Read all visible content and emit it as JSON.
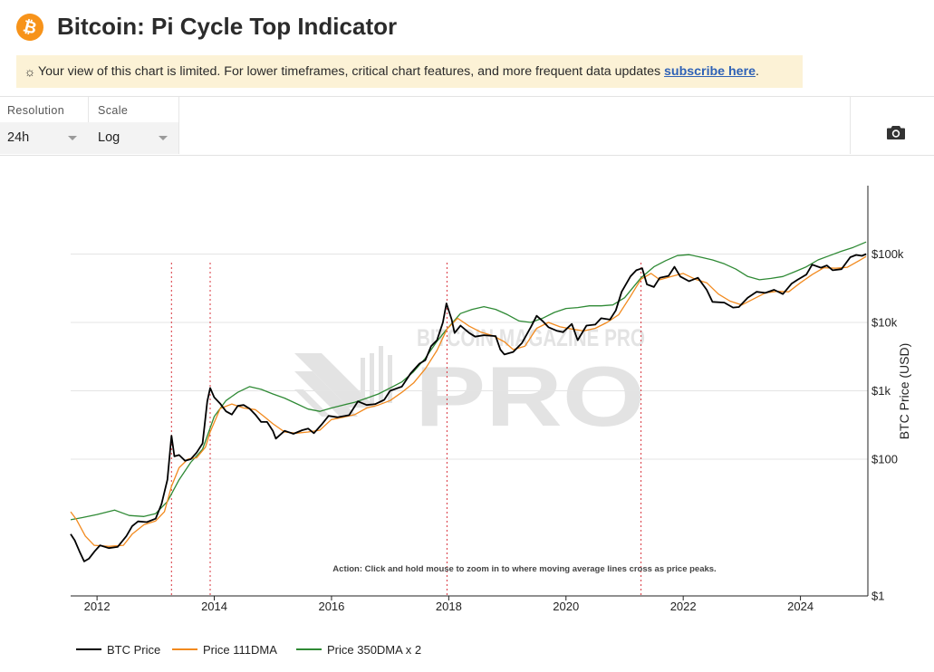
{
  "header": {
    "logo_glyph": "₿",
    "title": "Bitcoin: Pi Cycle Top Indicator"
  },
  "notice": {
    "icon": "sun-icon",
    "text": "Your view of this chart is limited. For lower timeframes, critical chart features, and more frequent data updates ",
    "link": "subscribe here",
    "suffix": "."
  },
  "controls": {
    "resolution": {
      "label": "Resolution",
      "value": "24h"
    },
    "scale": {
      "label": "Scale",
      "value": "Log"
    },
    "screenshot_icon": "camera-icon"
  },
  "chart_data": {
    "type": "line",
    "yscale": "log",
    "ylabel": "BTC Price (USD)",
    "xlim": [
      2011.55,
      2025.15
    ],
    "ylim": [
      1,
      1000000
    ],
    "y_ticks": [
      {
        "value": 100000,
        "label": "$100k"
      },
      {
        "value": 10000,
        "label": "$10k"
      },
      {
        "value": 1000,
        "label": "$1k"
      },
      {
        "value": 100,
        "label": "$100"
      },
      {
        "value": 1,
        "label": "$1"
      }
    ],
    "x_ticks": [
      {
        "value": 2012,
        "label": "2012"
      },
      {
        "value": 2014,
        "label": "2014"
      },
      {
        "value": 2016,
        "label": "2016"
      },
      {
        "value": 2018,
        "label": "2018"
      },
      {
        "value": 2020,
        "label": "2020"
      },
      {
        "value": 2022,
        "label": "2022"
      },
      {
        "value": 2024,
        "label": "2024"
      }
    ],
    "grid": true,
    "legend_position": "bottom-left",
    "watermark": "BITCOIN MAGAZINE PRO",
    "annotation": "Action: Click and hold mouse to zoom in to where moving average lines cross as price peaks.",
    "cross_events": [
      2013.27,
      2013.93,
      2017.97,
      2021.28
    ],
    "series": [
      {
        "name": "BTC Price",
        "color": "#000000",
        "points": [
          [
            2011.55,
            8
          ],
          [
            2011.62,
            6.5
          ],
          [
            2011.7,
            4.5
          ],
          [
            2011.78,
            3.2
          ],
          [
            2011.86,
            3.5
          ],
          [
            2011.96,
            4.5
          ],
          [
            2012.05,
            5.5
          ],
          [
            2012.2,
            5
          ],
          [
            2012.35,
            5.2
          ],
          [
            2012.5,
            7.5
          ],
          [
            2012.6,
            10.5
          ],
          [
            2012.7,
            12.3
          ],
          [
            2012.85,
            12
          ],
          [
            2013.0,
            13.5
          ],
          [
            2013.1,
            22
          ],
          [
            2013.2,
            50
          ],
          [
            2013.27,
            220
          ],
          [
            2013.32,
            110
          ],
          [
            2013.4,
            115
          ],
          [
            2013.5,
            95
          ],
          [
            2013.6,
            100
          ],
          [
            2013.7,
            125
          ],
          [
            2013.8,
            170
          ],
          [
            2013.88,
            700
          ],
          [
            2013.93,
            1100
          ],
          [
            2014.0,
            800
          ],
          [
            2014.1,
            650
          ],
          [
            2014.2,
            500
          ],
          [
            2014.3,
            450
          ],
          [
            2014.4,
            600
          ],
          [
            2014.5,
            620
          ],
          [
            2014.6,
            550
          ],
          [
            2014.7,
            450
          ],
          [
            2014.8,
            350
          ],
          [
            2014.9,
            350
          ],
          [
            2015.0,
            260
          ],
          [
            2015.05,
            200
          ],
          [
            2015.2,
            260
          ],
          [
            2015.35,
            235
          ],
          [
            2015.5,
            265
          ],
          [
            2015.6,
            280
          ],
          [
            2015.7,
            240
          ],
          [
            2015.83,
            320
          ],
          [
            2015.95,
            430
          ],
          [
            2016.1,
            410
          ],
          [
            2016.3,
            440
          ],
          [
            2016.45,
            700
          ],
          [
            2016.6,
            620
          ],
          [
            2016.75,
            640
          ],
          [
            2016.9,
            740
          ],
          [
            2017.0,
            1000
          ],
          [
            2017.2,
            1150
          ],
          [
            2017.35,
            1800
          ],
          [
            2017.5,
            2500
          ],
          [
            2017.6,
            2800
          ],
          [
            2017.7,
            4500
          ],
          [
            2017.8,
            5500
          ],
          [
            2017.9,
            10000
          ],
          [
            2017.96,
            19000
          ],
          [
            2018.05,
            11000
          ],
          [
            2018.1,
            7000
          ],
          [
            2018.2,
            9000
          ],
          [
            2018.35,
            7000
          ],
          [
            2018.45,
            6200
          ],
          [
            2018.6,
            6500
          ],
          [
            2018.8,
            6300
          ],
          [
            2018.88,
            4000
          ],
          [
            2018.95,
            3400
          ],
          [
            2019.1,
            3700
          ],
          [
            2019.25,
            5000
          ],
          [
            2019.4,
            8500
          ],
          [
            2019.5,
            12500
          ],
          [
            2019.6,
            10500
          ],
          [
            2019.7,
            8500
          ],
          [
            2019.85,
            7500
          ],
          [
            2019.95,
            7200
          ],
          [
            2020.1,
            9500
          ],
          [
            2020.2,
            5500
          ],
          [
            2020.35,
            9000
          ],
          [
            2020.5,
            9300
          ],
          [
            2020.6,
            11500
          ],
          [
            2020.75,
            11000
          ],
          [
            2020.85,
            15000
          ],
          [
            2020.95,
            28000
          ],
          [
            2021.1,
            47000
          ],
          [
            2021.2,
            58000
          ],
          [
            2021.3,
            62000
          ],
          [
            2021.38,
            36000
          ],
          [
            2021.5,
            33000
          ],
          [
            2021.6,
            45000
          ],
          [
            2021.75,
            48000
          ],
          [
            2021.85,
            65000
          ],
          [
            2021.95,
            47000
          ],
          [
            2022.1,
            40000
          ],
          [
            2022.25,
            45000
          ],
          [
            2022.4,
            30000
          ],
          [
            2022.5,
            20000
          ],
          [
            2022.7,
            19500
          ],
          [
            2022.85,
            16500
          ],
          [
            2022.95,
            16800
          ],
          [
            2023.1,
            23000
          ],
          [
            2023.25,
            28000
          ],
          [
            2023.4,
            27000
          ],
          [
            2023.55,
            30000
          ],
          [
            2023.7,
            26000
          ],
          [
            2023.85,
            37000
          ],
          [
            2023.95,
            42000
          ],
          [
            2024.1,
            50000
          ],
          [
            2024.2,
            70000
          ],
          [
            2024.35,
            63000
          ],
          [
            2024.45,
            68000
          ],
          [
            2024.55,
            58000
          ],
          [
            2024.7,
            60000
          ],
          [
            2024.85,
            90000
          ],
          [
            2024.95,
            97000
          ],
          [
            2025.05,
            94000
          ],
          [
            2025.12,
            100000
          ]
        ]
      },
      {
        "name": "Price 111DMA",
        "color": "#f28a1e",
        "points": [
          [
            2011.55,
            17
          ],
          [
            2011.65,
            13
          ],
          [
            2011.8,
            7.5
          ],
          [
            2011.95,
            5.5
          ],
          [
            2012.2,
            5.3
          ],
          [
            2012.45,
            5.5
          ],
          [
            2012.6,
            8
          ],
          [
            2012.8,
            11
          ],
          [
            2013.0,
            12.5
          ],
          [
            2013.15,
            17
          ],
          [
            2013.27,
            40
          ],
          [
            2013.4,
            75
          ],
          [
            2013.55,
            100
          ],
          [
            2013.7,
            105
          ],
          [
            2013.85,
            150
          ],
          [
            2013.93,
            250
          ],
          [
            2014.1,
            550
          ],
          [
            2014.3,
            640
          ],
          [
            2014.5,
            560
          ],
          [
            2014.7,
            530
          ],
          [
            2014.85,
            420
          ],
          [
            2015.0,
            330
          ],
          [
            2015.2,
            250
          ],
          [
            2015.4,
            240
          ],
          [
            2015.6,
            250
          ],
          [
            2015.8,
            265
          ],
          [
            2016.0,
            380
          ],
          [
            2016.2,
            410
          ],
          [
            2016.4,
            450
          ],
          [
            2016.6,
            560
          ],
          [
            2016.8,
            620
          ],
          [
            2017.0,
            720
          ],
          [
            2017.2,
            950
          ],
          [
            2017.4,
            1300
          ],
          [
            2017.6,
            2100
          ],
          [
            2017.8,
            3900
          ],
          [
            2017.97,
            8000
          ],
          [
            2018.15,
            11500
          ],
          [
            2018.35,
            8800
          ],
          [
            2018.55,
            7200
          ],
          [
            2018.75,
            6400
          ],
          [
            2018.95,
            5200
          ],
          [
            2019.1,
            4000
          ],
          [
            2019.3,
            4500
          ],
          [
            2019.5,
            8200
          ],
          [
            2019.7,
            10000
          ],
          [
            2019.9,
            8600
          ],
          [
            2020.1,
            8000
          ],
          [
            2020.3,
            7500
          ],
          [
            2020.5,
            8200
          ],
          [
            2020.7,
            10000
          ],
          [
            2020.9,
            13000
          ],
          [
            2021.1,
            24000
          ],
          [
            2021.28,
            43000
          ],
          [
            2021.45,
            52000
          ],
          [
            2021.6,
            42000
          ],
          [
            2021.8,
            47000
          ],
          [
            2022.0,
            52000
          ],
          [
            2022.2,
            43000
          ],
          [
            2022.4,
            38000
          ],
          [
            2022.6,
            26000
          ],
          [
            2022.8,
            20500
          ],
          [
            2023.0,
            18000
          ],
          [
            2023.2,
            22000
          ],
          [
            2023.4,
            27000
          ],
          [
            2023.6,
            28500
          ],
          [
            2023.8,
            28000
          ],
          [
            2024.0,
            38000
          ],
          [
            2024.2,
            50000
          ],
          [
            2024.4,
            63000
          ],
          [
            2024.6,
            62000
          ],
          [
            2024.8,
            64000
          ],
          [
            2025.0,
            80000
          ],
          [
            2025.12,
            92000
          ]
        ]
      },
      {
        "name": "Price 350DMA x 2",
        "color": "#2f8a35",
        "points": [
          [
            2011.55,
            13
          ],
          [
            2011.75,
            14
          ],
          [
            2012.0,
            15.5
          ],
          [
            2012.3,
            18
          ],
          [
            2012.55,
            15
          ],
          [
            2012.8,
            14.5
          ],
          [
            2013.0,
            16
          ],
          [
            2013.2,
            24
          ],
          [
            2013.4,
            50
          ],
          [
            2013.6,
            90
          ],
          [
            2013.8,
            140
          ],
          [
            2014.0,
            420
          ],
          [
            2014.2,
            720
          ],
          [
            2014.4,
            950
          ],
          [
            2014.6,
            1150
          ],
          [
            2014.8,
            1050
          ],
          [
            2015.0,
            900
          ],
          [
            2015.2,
            780
          ],
          [
            2015.4,
            650
          ],
          [
            2015.6,
            540
          ],
          [
            2015.8,
            500
          ],
          [
            2016.0,
            560
          ],
          [
            2016.2,
            620
          ],
          [
            2016.4,
            680
          ],
          [
            2016.6,
            780
          ],
          [
            2016.8,
            900
          ],
          [
            2017.0,
            1100
          ],
          [
            2017.2,
            1350
          ],
          [
            2017.4,
            1900
          ],
          [
            2017.6,
            3000
          ],
          [
            2017.8,
            5300
          ],
          [
            2017.97,
            8000
          ],
          [
            2018.2,
            13500
          ],
          [
            2018.4,
            15500
          ],
          [
            2018.6,
            17000
          ],
          [
            2018.8,
            15500
          ],
          [
            2019.0,
            13000
          ],
          [
            2019.2,
            10500
          ],
          [
            2019.4,
            10000
          ],
          [
            2019.6,
            11500
          ],
          [
            2019.8,
            14000
          ],
          [
            2020.0,
            16000
          ],
          [
            2020.2,
            16500
          ],
          [
            2020.4,
            17500
          ],
          [
            2020.6,
            17500
          ],
          [
            2020.8,
            18000
          ],
          [
            2021.0,
            23000
          ],
          [
            2021.28,
            45000
          ],
          [
            2021.5,
            65000
          ],
          [
            2021.7,
            80000
          ],
          [
            2021.9,
            95000
          ],
          [
            2022.1,
            98000
          ],
          [
            2022.3,
            90000
          ],
          [
            2022.5,
            82000
          ],
          [
            2022.7,
            72000
          ],
          [
            2022.9,
            60000
          ],
          [
            2023.1,
            47000
          ],
          [
            2023.3,
            42000
          ],
          [
            2023.5,
            44000
          ],
          [
            2023.7,
            47000
          ],
          [
            2023.9,
            55000
          ],
          [
            2024.1,
            65000
          ],
          [
            2024.3,
            82000
          ],
          [
            2024.5,
            95000
          ],
          [
            2024.7,
            110000
          ],
          [
            2024.9,
            125000
          ],
          [
            2025.12,
            150000
          ]
        ]
      }
    ]
  }
}
